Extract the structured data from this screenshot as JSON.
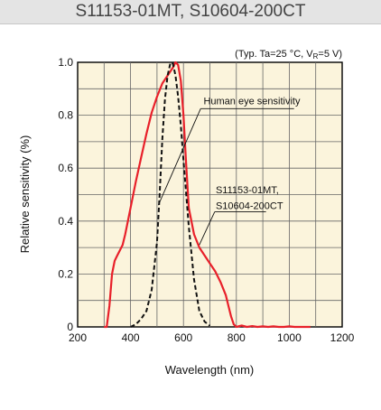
{
  "header": {
    "title": "S11153-01MT, S10604-200CT"
  },
  "chart_data": {
    "type": "line",
    "title": "S11153-01MT, S10604-200CT",
    "condition_note": "(Typ. Ta=25 °C, V",
    "condition_subscript": "R",
    "condition_tail": "=5 V)",
    "xlabel": "Wavelength (nm)",
    "ylabel": "Relative sensitivity (%)",
    "xlim": [
      200,
      1200
    ],
    "ylim": [
      0,
      1.0
    ],
    "x_ticks": [
      "200",
      "400",
      "600",
      "800",
      "1000",
      "1200"
    ],
    "y_ticks": [
      "0",
      "0.2",
      "0.4",
      "0.6",
      "0.8",
      "1.0"
    ],
    "grid": true,
    "annotations": [
      {
        "text": "Human eye sensitivity",
        "target_series": 1
      },
      {
        "text": "S11153-01MT,",
        "text2": "S10604-200CT",
        "target_series": 0
      }
    ],
    "series": [
      {
        "color": "#e8202a",
        "style": "solid",
        "x": [
          300,
          310,
          320,
          330,
          340,
          350,
          360,
          370,
          380,
          400,
          420,
          440,
          460,
          480,
          500,
          520,
          540,
          560,
          570,
          580,
          590,
          600,
          610,
          620,
          640,
          660,
          680,
          700,
          720,
          740,
          760,
          770,
          780,
          790,
          800,
          820,
          840,
          860,
          880,
          900,
          920,
          940,
          960,
          980,
          1000,
          1020,
          1040,
          1060,
          1080
        ],
        "y": [
          0.0,
          0.0,
          0.08,
          0.2,
          0.25,
          0.27,
          0.29,
          0.31,
          0.35,
          0.45,
          0.55,
          0.64,
          0.73,
          0.81,
          0.87,
          0.92,
          0.95,
          0.98,
          1.0,
          0.99,
          0.93,
          0.8,
          0.62,
          0.45,
          0.35,
          0.3,
          0.27,
          0.24,
          0.21,
          0.17,
          0.12,
          0.08,
          0.04,
          0.01,
          0.0,
          0.005,
          0.0,
          0.003,
          0.0,
          0.002,
          0.0,
          0.002,
          0.0,
          0.0,
          0.002,
          0.0,
          0.0,
          0.0,
          0.0
        ]
      },
      {
        "color": "#111111",
        "style": "dashed",
        "x": [
          400,
          420,
          440,
          460,
          480,
          500,
          510,
          520,
          530,
          540,
          550,
          555,
          560,
          570,
          580,
          590,
          600,
          620,
          640,
          660,
          680,
          700
        ],
        "y": [
          0.0,
          0.01,
          0.03,
          0.06,
          0.14,
          0.32,
          0.5,
          0.71,
          0.86,
          0.95,
          0.995,
          1.0,
          0.995,
          0.95,
          0.87,
          0.76,
          0.63,
          0.38,
          0.18,
          0.06,
          0.02,
          0.004
        ]
      }
    ]
  }
}
